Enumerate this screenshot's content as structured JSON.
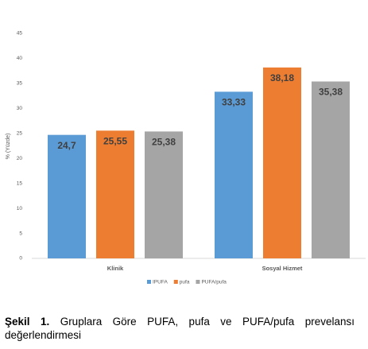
{
  "chart_data": {
    "type": "bar",
    "ylabel": "% (Yüzde)",
    "categories": [
      "Klinik",
      "Sosyal Hizmet"
    ],
    "series": [
      {
        "name": "IPUFA",
        "color": "#5b9bd5",
        "values": [
          24.7,
          33.33
        ],
        "value_labels": [
          "24,7",
          "33,33"
        ]
      },
      {
        "name": "pufa",
        "color": "#ed7d31",
        "values": [
          25.55,
          38.18
        ],
        "value_labels": [
          "25,55",
          "38,18"
        ]
      },
      {
        "name": "PUFA/pufa",
        "color": "#a5a5a5",
        "values": [
          25.38,
          35.38
        ],
        "value_labels": [
          "25,38",
          "35,38"
        ]
      }
    ],
    "ylim": [
      0,
      45
    ],
    "yticks": [
      0,
      5,
      10,
      15,
      20,
      25,
      30,
      35,
      40,
      45
    ],
    "grid": false,
    "legend": "bottom"
  },
  "caption": {
    "label": "Şekil 1.",
    "text": "Gruplara Göre PUFA, pufa ve PUFA/pufa prevelansı değerlendirmesi"
  }
}
